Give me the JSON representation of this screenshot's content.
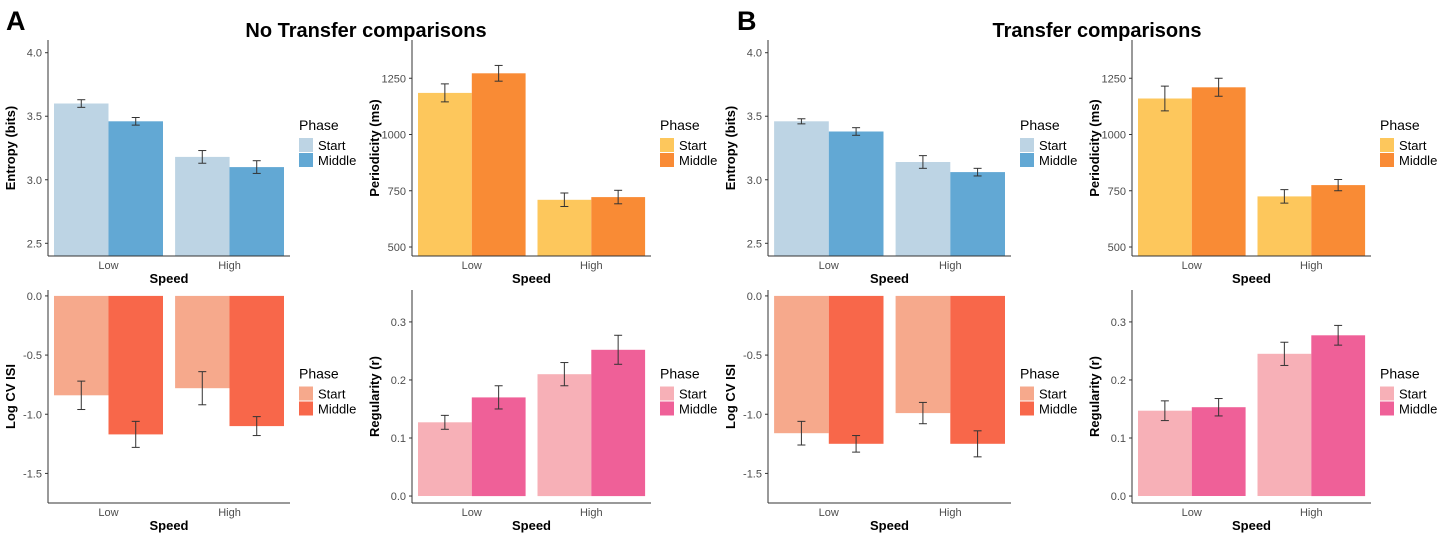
{
  "sections": [
    {
      "letter": "A",
      "title": "No Transfer comparisons"
    },
    {
      "letter": "B",
      "title": "Transfer comparisons"
    }
  ],
  "legend_title": "Phase",
  "phases": [
    "Start",
    "Middle"
  ],
  "chart_data": [
    {
      "id": "A-entropy",
      "type": "bar",
      "section": "A",
      "categories": [
        "Low",
        "High"
      ],
      "xlabel": "Speed",
      "ylabel": "Entropy (bits)",
      "ylim": [
        2.4,
        4.1
      ],
      "yticks": [
        2.5,
        3.0,
        3.5,
        4.0
      ],
      "ytick_labels": [
        "2.5",
        "3.0",
        "3.5",
        "4.0"
      ],
      "baseline": 2.4,
      "colors": [
        "#bdd4e4",
        "#62a8d4"
      ],
      "series": [
        {
          "name": "Start",
          "values": [
            3.6,
            3.18
          ],
          "errors": [
            0.03,
            0.05
          ]
        },
        {
          "name": "Middle",
          "values": [
            3.46,
            3.1
          ],
          "errors": [
            0.03,
            0.05
          ]
        }
      ]
    },
    {
      "id": "A-periodicity",
      "type": "bar",
      "section": "A",
      "categories": [
        "Low",
        "High"
      ],
      "xlabel": "Speed",
      "ylabel": "Periodicity (ms)",
      "ylim": [
        460,
        1420
      ],
      "yticks": [
        500,
        750,
        1000,
        1250
      ],
      "ytick_labels": [
        "500",
        "750",
        "1000",
        "1250"
      ],
      "baseline": 460,
      "colors": [
        "#fdc75c",
        "#f98b35"
      ],
      "series": [
        {
          "name": "Start",
          "values": [
            1185,
            710
          ],
          "errors": [
            40,
            30
          ]
        },
        {
          "name": "Middle",
          "values": [
            1272,
            722
          ],
          "errors": [
            35,
            30
          ]
        }
      ]
    },
    {
      "id": "A-cvisi",
      "type": "bar",
      "section": "A",
      "categories": [
        "Low",
        "High"
      ],
      "xlabel": "Speed",
      "ylabel": "Log CV ISI",
      "ylim": [
        -1.75,
        0.05
      ],
      "yticks": [
        0.0,
        -0.5,
        -1.0,
        -1.5
      ],
      "ytick_labels": [
        "0.0",
        "-0.5",
        "-1.0",
        "-1.5"
      ],
      "baseline": 0,
      "colors": [
        "#f6a98c",
        "#f8674a"
      ],
      "series": [
        {
          "name": "Start",
          "values": [
            -0.84,
            -0.78
          ],
          "errors": [
            0.12,
            0.14
          ]
        },
        {
          "name": "Middle",
          "values": [
            -1.17,
            -1.1
          ],
          "errors": [
            0.11,
            0.08
          ]
        }
      ]
    },
    {
      "id": "A-regularity",
      "type": "bar",
      "section": "A",
      "categories": [
        "Low",
        "High"
      ],
      "xlabel": "Speed",
      "ylabel": "Regularity (r)",
      "ylim": [
        -0.012,
        0.355
      ],
      "yticks": [
        0.0,
        0.1,
        0.2,
        0.3
      ],
      "ytick_labels": [
        "0.0",
        "0.1",
        "0.2",
        "0.3"
      ],
      "baseline": 0,
      "colors": [
        "#f7b0b7",
        "#ef6098"
      ],
      "series": [
        {
          "name": "Start",
          "values": [
            0.127,
            0.21
          ],
          "errors": [
            0.012,
            0.02
          ]
        },
        {
          "name": "Middle",
          "values": [
            0.17,
            0.252
          ],
          "errors": [
            0.02,
            0.025
          ]
        }
      ]
    },
    {
      "id": "B-entropy",
      "type": "bar",
      "section": "B",
      "categories": [
        "Low",
        "High"
      ],
      "xlabel": "Speed",
      "ylabel": "Entropy (bits)",
      "ylim": [
        2.4,
        4.1
      ],
      "yticks": [
        2.5,
        3.0,
        3.5,
        4.0
      ],
      "ytick_labels": [
        "2.5",
        "3.0",
        "3.5",
        "4.0"
      ],
      "baseline": 2.4,
      "colors": [
        "#bdd4e4",
        "#62a8d4"
      ],
      "series": [
        {
          "name": "Start",
          "values": [
            3.46,
            3.14
          ],
          "errors": [
            0.02,
            0.05
          ]
        },
        {
          "name": "Middle",
          "values": [
            3.38,
            3.06
          ],
          "errors": [
            0.03,
            0.03
          ]
        }
      ]
    },
    {
      "id": "B-periodicity",
      "type": "bar",
      "section": "B",
      "categories": [
        "Low",
        "High"
      ],
      "xlabel": "Speed",
      "ylabel": "Periodicity (ms)",
      "ylim": [
        460,
        1420
      ],
      "yticks": [
        500,
        750,
        1000,
        1250
      ],
      "ytick_labels": [
        "500",
        "750",
        "1000",
        "1250"
      ],
      "baseline": 460,
      "colors": [
        "#fdc75c",
        "#f98b35"
      ],
      "series": [
        {
          "name": "Start",
          "values": [
            1160,
            725
          ],
          "errors": [
            55,
            30
          ]
        },
        {
          "name": "Middle",
          "values": [
            1210,
            775
          ],
          "errors": [
            40,
            25
          ]
        }
      ]
    },
    {
      "id": "B-cvisi",
      "type": "bar",
      "section": "B",
      "categories": [
        "Low",
        "High"
      ],
      "xlabel": "Speed",
      "ylabel": "Log CV ISI",
      "ylim": [
        -1.75,
        0.05
      ],
      "yticks": [
        0.0,
        -0.5,
        -1.0,
        -1.5
      ],
      "ytick_labels": [
        "0.0",
        "-0.5",
        "-1.0",
        "-1.5"
      ],
      "baseline": 0,
      "colors": [
        "#f6a98c",
        "#f8674a"
      ],
      "series": [
        {
          "name": "Start",
          "values": [
            -1.16,
            -0.99
          ],
          "errors": [
            0.1,
            0.09
          ]
        },
        {
          "name": "Middle",
          "values": [
            -1.25,
            -1.25
          ],
          "errors": [
            0.07,
            0.11
          ]
        }
      ]
    },
    {
      "id": "B-regularity",
      "type": "bar",
      "section": "B",
      "categories": [
        "Low",
        "High"
      ],
      "xlabel": "Speed",
      "ylabel": "Regularity (r)",
      "ylim": [
        -0.012,
        0.355
      ],
      "yticks": [
        0.0,
        0.1,
        0.2,
        0.3
      ],
      "ytick_labels": [
        "0.0",
        "0.1",
        "0.2",
        "0.3"
      ],
      "baseline": 0,
      "colors": [
        "#f7b0b7",
        "#ef6098"
      ],
      "series": [
        {
          "name": "Start",
          "values": [
            0.147,
            0.245
          ],
          "errors": [
            0.017,
            0.02
          ]
        },
        {
          "name": "Middle",
          "values": [
            0.153,
            0.277
          ],
          "errors": [
            0.015,
            0.017
          ]
        }
      ]
    }
  ]
}
